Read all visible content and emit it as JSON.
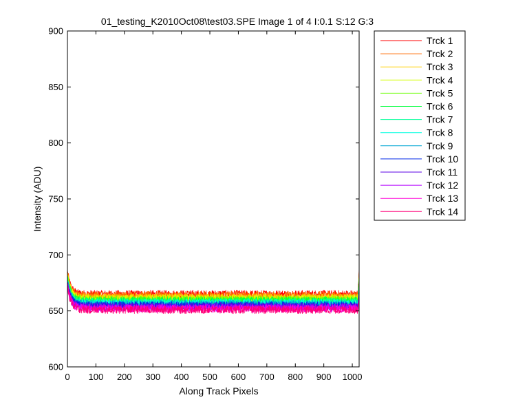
{
  "chart_data": {
    "type": "line",
    "title": "01_testing_K2010Oct08\\test03.SPE  Image 1 of 4  I:0.1  S:12  G:3",
    "xlabel": "Along Track Pixels",
    "ylabel": "Intensity (ADU)",
    "xlim": [
      0,
      1024
    ],
    "ylim": [
      600,
      900
    ],
    "x_ticks": [
      0,
      100,
      200,
      300,
      400,
      500,
      600,
      700,
      800,
      900,
      1000
    ],
    "y_ticks": [
      600,
      650,
      700,
      750,
      800,
      850,
      900
    ],
    "grid": false,
    "legend_position": "outside-right",
    "x_range": [
      1,
      1024
    ],
    "noise_amplitude": 3.5,
    "series": [
      {
        "name": "Trck 1",
        "color": "#ff0000",
        "start": 684,
        "plateau": 665,
        "end": 687
      },
      {
        "name": "Trck 2",
        "color": "#ff6a00",
        "start": 683,
        "plateau": 664,
        "end": 685
      },
      {
        "name": "Trck 3",
        "color": "#ffd000",
        "start": 682,
        "plateau": 662,
        "end": 683
      },
      {
        "name": "Trck 4",
        "color": "#d4ff00",
        "start": 681,
        "plateau": 661,
        "end": 681
      },
      {
        "name": "Trck 5",
        "color": "#6aff00",
        "start": 680,
        "plateau": 660,
        "end": 679
      },
      {
        "name": "Trck 6",
        "color": "#00ff3c",
        "start": 679,
        "plateau": 659,
        "end": 677
      },
      {
        "name": "Trck 7",
        "color": "#00ff9a",
        "start": 678,
        "plateau": 658,
        "end": 675
      },
      {
        "name": "Trck 8",
        "color": "#00ffe0",
        "start": 677,
        "plateau": 657,
        "end": 673
      },
      {
        "name": "Trck 9",
        "color": "#00a6d4",
        "start": 676,
        "plateau": 656,
        "end": 671
      },
      {
        "name": "Trck 10",
        "color": "#0028e6",
        "start": 675,
        "plateau": 655,
        "end": 669
      },
      {
        "name": "Trck 11",
        "color": "#5a00e6",
        "start": 674,
        "plateau": 654,
        "end": 667
      },
      {
        "name": "Trck 12",
        "color": "#b400ff",
        "start": 673,
        "plateau": 653,
        "end": 665
      },
      {
        "name": "Trck 13",
        "color": "#ff00d8",
        "start": 672,
        "plateau": 652,
        "end": 663
      },
      {
        "name": "Trck 14",
        "color": "#ff0078",
        "start": 671,
        "plateau": 651,
        "end": 661
      }
    ]
  }
}
